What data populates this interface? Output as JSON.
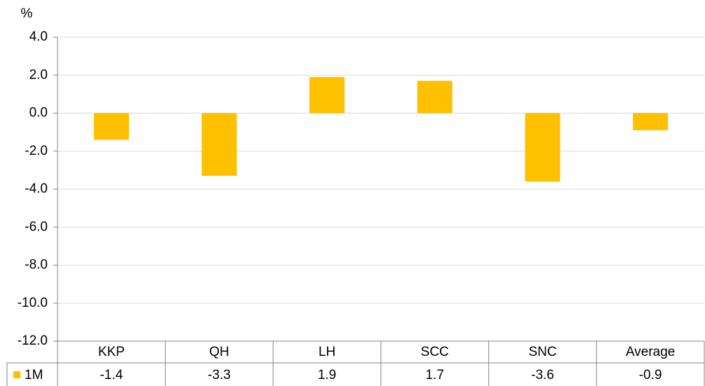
{
  "chart_data": {
    "type": "bar",
    "ylabel": "%",
    "categories": [
      "KKP",
      "QH",
      "LH",
      "SCC",
      "SNC",
      "Average"
    ],
    "series": [
      {
        "name": "1M",
        "color": "#ffc000",
        "values": [
          -1.4,
          -3.3,
          1.9,
          1.7,
          -3.6,
          -0.9
        ]
      }
    ],
    "ylim": [
      -12,
      4
    ],
    "yticks": [
      {
        "value": -12,
        "label": "-12.0"
      },
      {
        "value": -10,
        "label": "-10.0"
      },
      {
        "value": -8,
        "label": "-8.0"
      },
      {
        "value": -6,
        "label": "-6.0"
      },
      {
        "value": -4,
        "label": "-4.0"
      },
      {
        "value": -2,
        "label": "-2.0"
      },
      {
        "value": 0,
        "label": "0.0"
      },
      {
        "value": 2,
        "label": "2.0"
      },
      {
        "value": 4,
        "label": "4.0"
      }
    ],
    "grid": true
  }
}
